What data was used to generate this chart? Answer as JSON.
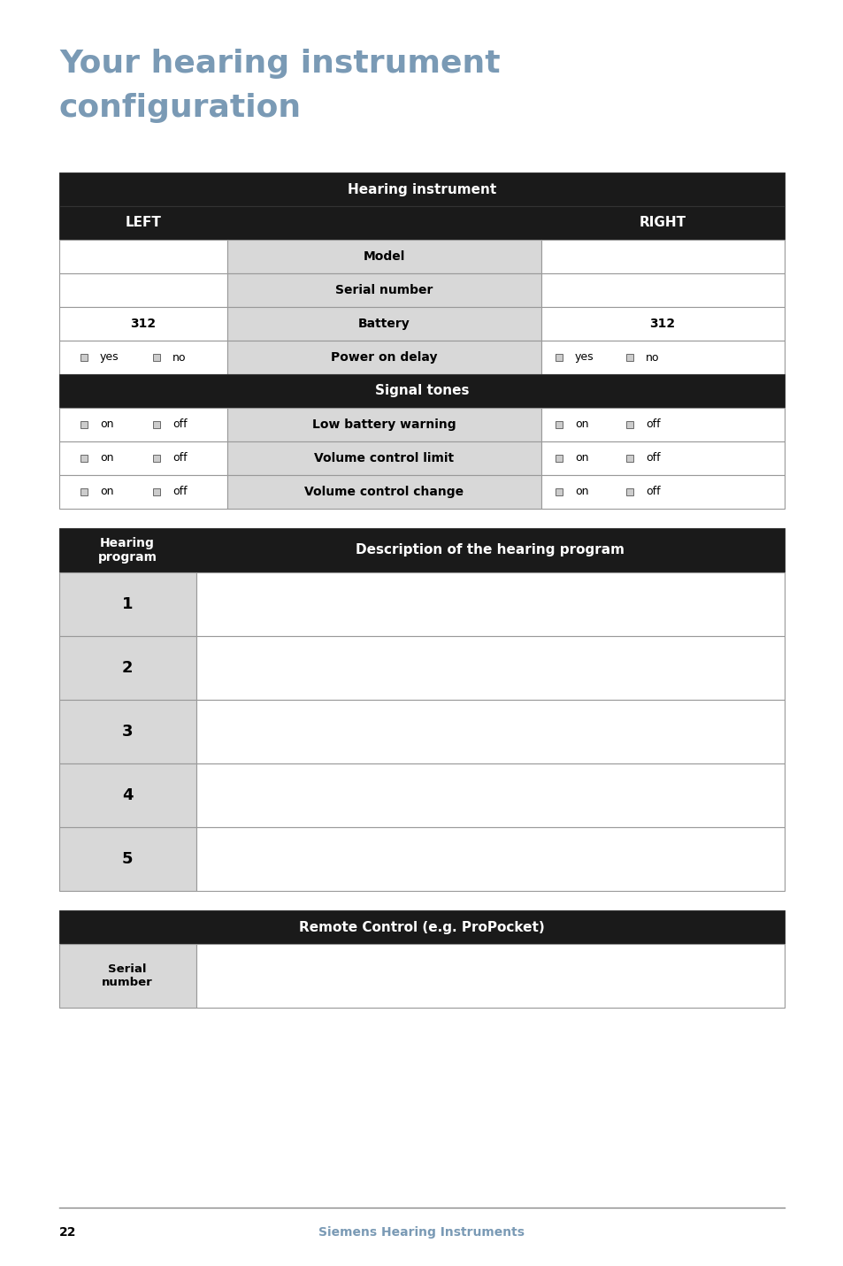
{
  "title_line1": "Your hearing instrument",
  "title_line2": "configuration",
  "title_color": "#7a9ab5",
  "page_num": "22",
  "footer_text": "Siemens Hearing Instruments",
  "bg_color": "#ffffff",
  "dark_bg": "#1a1a1a",
  "gray_bg": "#d8d8d8",
  "white_bg": "#ffffff",
  "border_color": "#999999",
  "table1_header": "Hearing instrument",
  "left_label": "LEFT",
  "right_label": "RIGHT",
  "t1_rows": [
    {
      "left": "",
      "center": "Model",
      "right": "",
      "gray_center": true
    },
    {
      "left": "",
      "center": "Serial number",
      "right": "",
      "gray_center": true
    },
    {
      "left": "312",
      "center": "Battery",
      "right": "312",
      "gray_center": true
    },
    {
      "left_cb": [
        "yes",
        "no"
      ],
      "center": "Power on delay",
      "right_cb": [
        "yes",
        "no"
      ],
      "gray_center": true
    }
  ],
  "signal_header": "Signal tones",
  "signal_rows": [
    {
      "left_cb": [
        "on",
        "off"
      ],
      "center": "Low battery warning",
      "right_cb": [
        "on",
        "off"
      ]
    },
    {
      "left_cb": [
        "on",
        "off"
      ],
      "center": "Volume control limit",
      "right_cb": [
        "on",
        "off"
      ]
    },
    {
      "left_cb": [
        "on",
        "off"
      ],
      "center": "Volume control change",
      "right_cb": [
        "on",
        "off"
      ]
    }
  ],
  "t2_col1_header": "Hearing\nprogram",
  "t2_col2_header": "Description of the hearing program",
  "programs": [
    "1",
    "2",
    "3",
    "4",
    "5"
  ],
  "t3_header": "Remote Control (e.g. ProPocket)",
  "t3_row_label": "Serial\nnumber"
}
